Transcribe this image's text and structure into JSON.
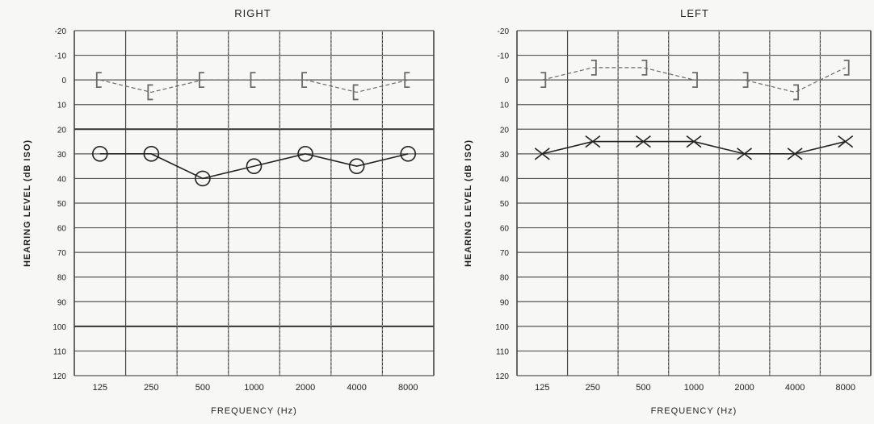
{
  "chart_data": [
    {
      "type": "line",
      "title": "RIGHT",
      "xlabel": "FREQUENCY (Hz)",
      "ylabel": "HEARING LEVEL (dB ISO)",
      "categories": [
        "125",
        "250",
        "500",
        "1000",
        "2000",
        "4000",
        "8000"
      ],
      "y_ticks": [
        "-20",
        "-10",
        "0",
        "10",
        "20",
        "30",
        "40",
        "50",
        "60",
        "70",
        "80",
        "90",
        "100",
        "110",
        "120"
      ],
      "ylim": [
        -20,
        120
      ],
      "y_inverted": true,
      "grid": true,
      "series": [
        {
          "marker": "bracket-left",
          "style": "dashed",
          "color": "#6a6a6a",
          "values": [
            0,
            5,
            0,
            0,
            0,
            5,
            0
          ]
        },
        {
          "marker": "circle",
          "style": "solid",
          "color": "#222222",
          "values": [
            30,
            30,
            40,
            35,
            30,
            35,
            30
          ]
        }
      ]
    },
    {
      "type": "line",
      "title": "LEFT",
      "xlabel": "FREQUENCY (Hz)",
      "ylabel": "HEARING LEVEL (dB ISO)",
      "categories": [
        "125",
        "250",
        "500",
        "1000",
        "2000",
        "4000",
        "8000"
      ],
      "y_ticks": [
        "-20",
        "-10",
        "0",
        "10",
        "20",
        "30",
        "40",
        "50",
        "60",
        "70",
        "80",
        "90",
        "100",
        "110",
        "120"
      ],
      "ylim": [
        -20,
        120
      ],
      "y_inverted": true,
      "grid": true,
      "series": [
        {
          "marker": "bracket-right",
          "style": "dashed",
          "color": "#6a6a6a",
          "values": [
            0,
            -5,
            -5,
            0,
            0,
            5,
            -5
          ]
        },
        {
          "marker": "x",
          "style": "solid",
          "color": "#222222",
          "values": [
            30,
            25,
            25,
            25,
            30,
            30,
            25
          ]
        }
      ]
    }
  ]
}
